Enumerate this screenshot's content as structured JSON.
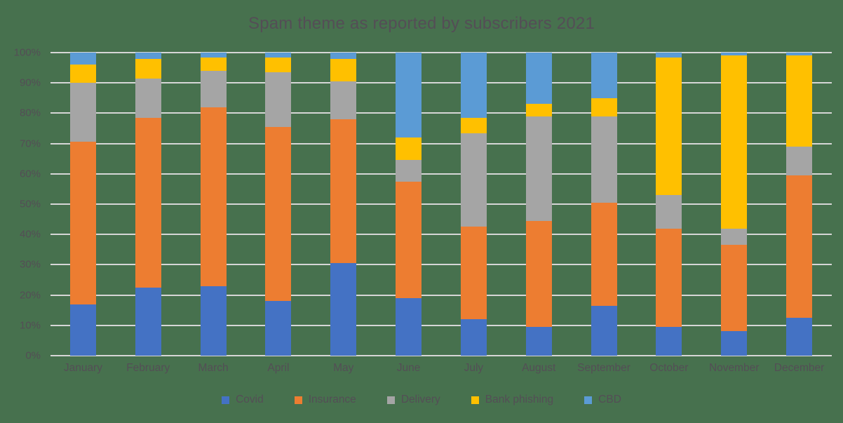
{
  "colors": {
    "background": "#47714E",
    "gridline": "#D6D6D6",
    "text": "#544E56"
  },
  "chart_data": {
    "type": "bar",
    "stacked": true,
    "percent_stacked": true,
    "title": "Spam theme as reported by subscribers 2021",
    "xlabel": "",
    "ylabel": "",
    "ylim": [
      0,
      100
    ],
    "grid": true,
    "legend_position": "bottom",
    "yticks": [
      {
        "value": 0,
        "label": "0%"
      },
      {
        "value": 10,
        "label": "10%"
      },
      {
        "value": 20,
        "label": "20%"
      },
      {
        "value": 30,
        "label": "30%"
      },
      {
        "value": 40,
        "label": "40%"
      },
      {
        "value": 50,
        "label": "50%"
      },
      {
        "value": 60,
        "label": "60%"
      },
      {
        "value": 70,
        "label": "70%"
      },
      {
        "value": 80,
        "label": "80%"
      },
      {
        "value": 90,
        "label": "90%"
      },
      {
        "value": 100,
        "label": "100%"
      }
    ],
    "categories": [
      "January",
      "February",
      "March",
      "April",
      "May",
      "June",
      "July",
      "August",
      "September",
      "October",
      "November",
      "December"
    ],
    "series": [
      {
        "name": "Covid",
        "color": "#4472C4",
        "values": [
          17,
          22.5,
          23,
          18,
          30.5,
          19,
          12,
          9.5,
          16.5,
          9.5,
          8,
          12.5
        ]
      },
      {
        "name": "Insurance",
        "color": "#ED7D31",
        "values": [
          53.5,
          56,
          59,
          57.5,
          47.5,
          38.5,
          30.5,
          35,
          34,
          32.5,
          28.5,
          47
        ]
      },
      {
        "name": "Delivery",
        "color": "#A5A5A5",
        "values": [
          19.5,
          13,
          12,
          18,
          12.5,
          7,
          31,
          34.5,
          28.5,
          11,
          5.5,
          9.5
        ]
      },
      {
        "name": "Bank phishing",
        "color": "#FFC000",
        "values": [
          6,
          6.5,
          4.5,
          5,
          7.5,
          7.5,
          5,
          4,
          6,
          45.5,
          57,
          30
        ]
      },
      {
        "name": "CBD",
        "color": "#5B9BD5",
        "values": [
          4,
          2,
          1.5,
          1.5,
          2,
          28,
          21.5,
          17,
          15,
          1.5,
          1,
          1
        ]
      }
    ]
  }
}
